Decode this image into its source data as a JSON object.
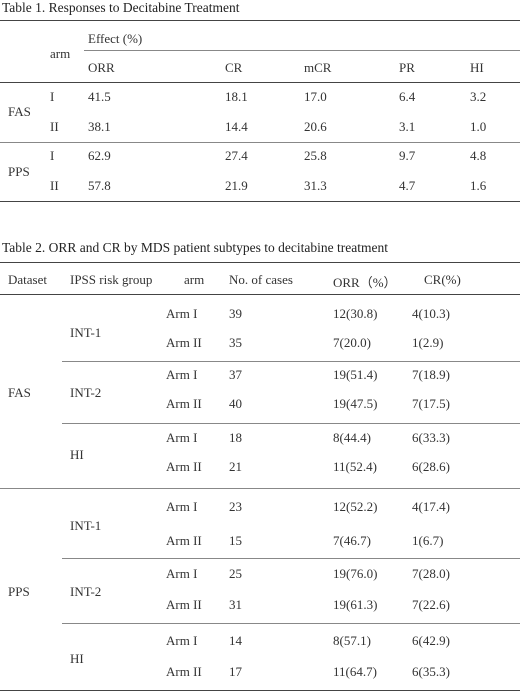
{
  "table1": {
    "caption": "Table 1. Responses to Decitabine Treatment",
    "header": {
      "arm": "arm",
      "effect": "Effect (%)",
      "columns": [
        "ORR",
        "CR",
        "mCR",
        "PR",
        "HI"
      ]
    },
    "groups": [
      {
        "name": "FAS",
        "rows": [
          {
            "arm": "I",
            "values": [
              "41.5",
              "18.1",
              "17.0",
              "6.4",
              "3.2"
            ]
          },
          {
            "arm": "II",
            "values": [
              "38.1",
              "14.4",
              "20.6",
              "3.1",
              "1.0"
            ]
          }
        ]
      },
      {
        "name": "PPS",
        "rows": [
          {
            "arm": "I",
            "values": [
              "62.9",
              "27.4",
              "25.8",
              "9.7",
              "4.8"
            ]
          },
          {
            "arm": "II",
            "values": [
              "57.8",
              "21.9",
              "31.3",
              "4.7",
              "1.6"
            ]
          }
        ]
      }
    ]
  },
  "table2": {
    "caption": "Table 2. ORR and CR by MDS patient subtypes to decitabine treatment",
    "header": {
      "dataset": "Dataset",
      "risk_group": "IPSS risk group",
      "arm": "arm",
      "cases": "No. of cases",
      "orr": "ORR（%）",
      "cr": "CR(%)"
    },
    "datasets": [
      {
        "name": "FAS",
        "groups": [
          {
            "name": "INT-1",
            "rows": [
              {
                "arm": "Arm I",
                "cases": "39",
                "orr": "12(30.8)",
                "cr": "4(10.3)"
              },
              {
                "arm": "Arm II",
                "cases": "35",
                "orr": "7(20.0)",
                "cr": "1(2.9)"
              }
            ]
          },
          {
            "name": "INT-2",
            "rows": [
              {
                "arm": "Arm I",
                "cases": "37",
                "orr": "19(51.4)",
                "cr": "7(18.9)"
              },
              {
                "arm": "Arm II",
                "cases": "40",
                "orr": "19(47.5)",
                "cr": "7(17.5)"
              }
            ]
          },
          {
            "name": "HI",
            "rows": [
              {
                "arm": "Arm I",
                "cases": "18",
                "orr": "8(44.4)",
                "cr": "6(33.3)"
              },
              {
                "arm": "Arm II",
                "cases": "21",
                "orr": "11(52.4)",
                "cr": "6(28.6)"
              }
            ]
          }
        ]
      },
      {
        "name": "PPS",
        "groups": [
          {
            "name": "INT-1",
            "rows": [
              {
                "arm": "Arm I",
                "cases": "23",
                "orr": "12(52.2)",
                "cr": "4(17.4)"
              },
              {
                "arm": "Arm II",
                "cases": "15",
                "orr": "7(46.7)",
                "cr": "1(6.7)"
              }
            ]
          },
          {
            "name": "INT-2",
            "rows": [
              {
                "arm": "Arm I",
                "cases": "25",
                "orr": "19(76.0)",
                "cr": "7(28.0)"
              },
              {
                "arm": "Arm II",
                "cases": "31",
                "orr": "19(61.3)",
                "cr": "7(22.6)"
              }
            ]
          },
          {
            "name": "HI",
            "rows": [
              {
                "arm": "Arm I",
                "cases": "14",
                "orr": "8(57.1)",
                "cr": "6(42.9)"
              },
              {
                "arm": "Arm II",
                "cases": "17",
                "orr": "11(64.7)",
                "cr": "6(35.3)"
              }
            ]
          }
        ]
      }
    ]
  }
}
